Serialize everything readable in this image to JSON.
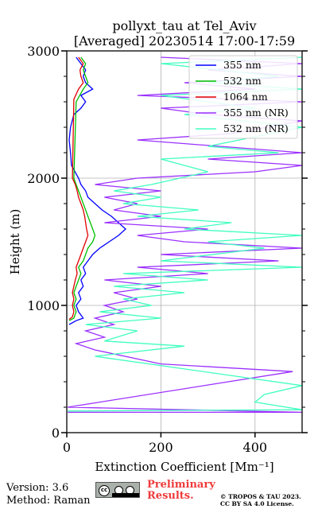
{
  "chart_data": {
    "type": "line",
    "title": "pollyxt_tau at Tel_Aviv",
    "subtitle": "[Averaged] 20230514 17:00-17:59",
    "xlabel": "Extinction Coefficient [Mm⁻¹]",
    "ylabel": "Height (m)",
    "xlim": [
      0,
      500
    ],
    "ylim": [
      0,
      3000
    ],
    "xticks": [
      0,
      200,
      400
    ],
    "yticks": [
      0,
      1000,
      2000,
      3000
    ],
    "grid": true,
    "legend_position": "top-right",
    "series": [
      {
        "name": "355 nm",
        "color": "#0000ff",
        "points": [
          [
            5,
            850
          ],
          [
            20,
            880
          ],
          [
            35,
            900
          ],
          [
            25,
            950
          ],
          [
            20,
            1000
          ],
          [
            30,
            1050
          ],
          [
            25,
            1100
          ],
          [
            35,
            1150
          ],
          [
            30,
            1200
          ],
          [
            40,
            1250
          ],
          [
            35,
            1300
          ],
          [
            45,
            1350
          ],
          [
            55,
            1400
          ],
          [
            70,
            1450
          ],
          [
            90,
            1500
          ],
          [
            110,
            1550
          ],
          [
            125,
            1600
          ],
          [
            110,
            1650
          ],
          [
            95,
            1700
          ],
          [
            75,
            1750
          ],
          [
            60,
            1800
          ],
          [
            45,
            1850
          ],
          [
            40,
            1900
          ],
          [
            30,
            1950
          ],
          [
            25,
            2000
          ],
          [
            10,
            2100
          ],
          [
            8,
            2200
          ],
          [
            5,
            2300
          ],
          [
            8,
            2400
          ],
          [
            15,
            2500
          ],
          [
            30,
            2550
          ],
          [
            40,
            2600
          ],
          [
            30,
            2650
          ],
          [
            55,
            2700
          ],
          [
            40,
            2750
          ],
          [
            35,
            2800
          ],
          [
            40,
            2850
          ],
          [
            30,
            2900
          ],
          [
            20,
            2950
          ]
        ]
      },
      {
        "name": "532 nm",
        "color": "#00c000",
        "points": [
          [
            5,
            880
          ],
          [
            15,
            900
          ],
          [
            20,
            950
          ],
          [
            15,
            1000
          ],
          [
            20,
            1050
          ],
          [
            15,
            1100
          ],
          [
            20,
            1150
          ],
          [
            25,
            1200
          ],
          [
            30,
            1250
          ],
          [
            25,
            1300
          ],
          [
            35,
            1350
          ],
          [
            40,
            1400
          ],
          [
            45,
            1450
          ],
          [
            55,
            1500
          ],
          [
            60,
            1550
          ],
          [
            55,
            1600
          ],
          [
            50,
            1650
          ],
          [
            45,
            1700
          ],
          [
            40,
            1750
          ],
          [
            35,
            1800
          ],
          [
            30,
            1850
          ],
          [
            25,
            1900
          ],
          [
            20,
            1950
          ],
          [
            15,
            2000
          ],
          [
            20,
            2600
          ],
          [
            35,
            2700
          ],
          [
            45,
            2750
          ],
          [
            40,
            2800
          ],
          [
            35,
            2850
          ],
          [
            40,
            2900
          ],
          [
            30,
            2950
          ]
        ]
      },
      {
        "name": "1064 nm",
        "color": "#e00000",
        "points": [
          [
            5,
            890
          ],
          [
            12,
            910
          ],
          [
            15,
            950
          ],
          [
            12,
            1000
          ],
          [
            15,
            1050
          ],
          [
            12,
            1100
          ],
          [
            15,
            1150
          ],
          [
            18,
            1200
          ],
          [
            22,
            1250
          ],
          [
            20,
            1300
          ],
          [
            25,
            1350
          ],
          [
            30,
            1400
          ],
          [
            35,
            1450
          ],
          [
            40,
            1500
          ],
          [
            45,
            1550
          ],
          [
            42,
            1600
          ],
          [
            40,
            1650
          ],
          [
            38,
            1700
          ],
          [
            35,
            1750
          ],
          [
            30,
            1800
          ],
          [
            25,
            1850
          ],
          [
            22,
            1900
          ],
          [
            18,
            1950
          ],
          [
            12,
            2000
          ],
          [
            15,
            2620
          ],
          [
            25,
            2700
          ],
          [
            35,
            2750
          ],
          [
            30,
            2800
          ],
          [
            28,
            2850
          ],
          [
            35,
            2900
          ],
          [
            25,
            2950
          ]
        ]
      },
      {
        "name": "355 nm (NR)",
        "color": "#9b30ff",
        "points": [
          [
            2,
            160
          ],
          [
            500,
            160
          ],
          [
            2,
            200
          ],
          [
            480,
            480
          ],
          [
            200,
            540
          ],
          [
            60,
            650
          ],
          [
            20,
            700
          ],
          [
            80,
            750
          ],
          [
            40,
            800
          ],
          [
            100,
            850
          ],
          [
            60,
            900
          ],
          [
            120,
            950
          ],
          [
            80,
            1000
          ],
          [
            150,
            1050
          ],
          [
            100,
            1100
          ],
          [
            200,
            1150
          ],
          [
            80,
            1200
          ],
          [
            300,
            1250
          ],
          [
            150,
            1300
          ],
          [
            450,
            1350
          ],
          [
            200,
            1400
          ],
          [
            500,
            1450
          ],
          [
            250,
            1500
          ],
          [
            150,
            1550
          ],
          [
            300,
            1600
          ],
          [
            80,
            1650
          ],
          [
            200,
            1700
          ],
          [
            100,
            1750
          ],
          [
            150,
            1800
          ],
          [
            80,
            1850
          ],
          [
            200,
            1900
          ],
          [
            60,
            1950
          ],
          [
            150,
            2000
          ],
          [
            400,
            2050
          ],
          [
            500,
            2100
          ],
          [
            300,
            2150
          ],
          [
            500,
            2200
          ],
          [
            150,
            2300
          ],
          [
            350,
            2350
          ],
          [
            500,
            2450
          ],
          [
            300,
            2500
          ],
          [
            200,
            2550
          ],
          [
            500,
            2600
          ],
          [
            150,
            2650
          ],
          [
            400,
            2700
          ],
          [
            250,
            2750
          ],
          [
            500,
            2800
          ],
          [
            300,
            2850
          ],
          [
            500,
            2900
          ],
          [
            200,
            2950
          ]
        ]
      },
      {
        "name": "532 nm (NR)",
        "color": "#40ffc0",
        "points": [
          [
            2,
            170
          ],
          [
            500,
            180
          ],
          [
            400,
            240
          ],
          [
            420,
            300
          ],
          [
            500,
            370
          ],
          [
            60,
            600
          ],
          [
            250,
            680
          ],
          [
            80,
            720
          ],
          [
            150,
            800
          ],
          [
            40,
            850
          ],
          [
            200,
            900
          ],
          [
            70,
            950
          ],
          [
            180,
            1000
          ],
          [
            120,
            1050
          ],
          [
            250,
            1100
          ],
          [
            100,
            1150
          ],
          [
            300,
            1200
          ],
          [
            120,
            1250
          ],
          [
            500,
            1300
          ],
          [
            200,
            1350
          ],
          [
            420,
            1450
          ],
          [
            300,
            1500
          ],
          [
            500,
            1550
          ],
          [
            250,
            1600
          ],
          [
            350,
            1650
          ],
          [
            150,
            1700
          ],
          [
            280,
            1750
          ],
          [
            120,
            1800
          ],
          [
            200,
            1850
          ],
          [
            100,
            1900
          ],
          [
            180,
            1950
          ],
          [
            300,
            2050
          ],
          [
            200,
            2150
          ],
          [
            450,
            2200
          ],
          [
            300,
            2250
          ],
          [
            500,
            2400
          ],
          [
            250,
            2500
          ],
          [
            400,
            2550
          ],
          [
            200,
            2650
          ],
          [
            500,
            2700
          ],
          [
            300,
            2750
          ],
          [
            450,
            2800
          ],
          [
            200,
            2900
          ],
          [
            500,
            2950
          ]
        ]
      }
    ]
  },
  "footer": {
    "version": "Version: 3.6",
    "method": "Method: Raman",
    "preliminary_line1": "Preliminary",
    "preliminary_line2": "Results.",
    "copyright_line1": "© TROPOS & TAU 2023.",
    "copyright_line2": "CC BY SA 4.0 License.",
    "license_badge": "cc by sa"
  }
}
